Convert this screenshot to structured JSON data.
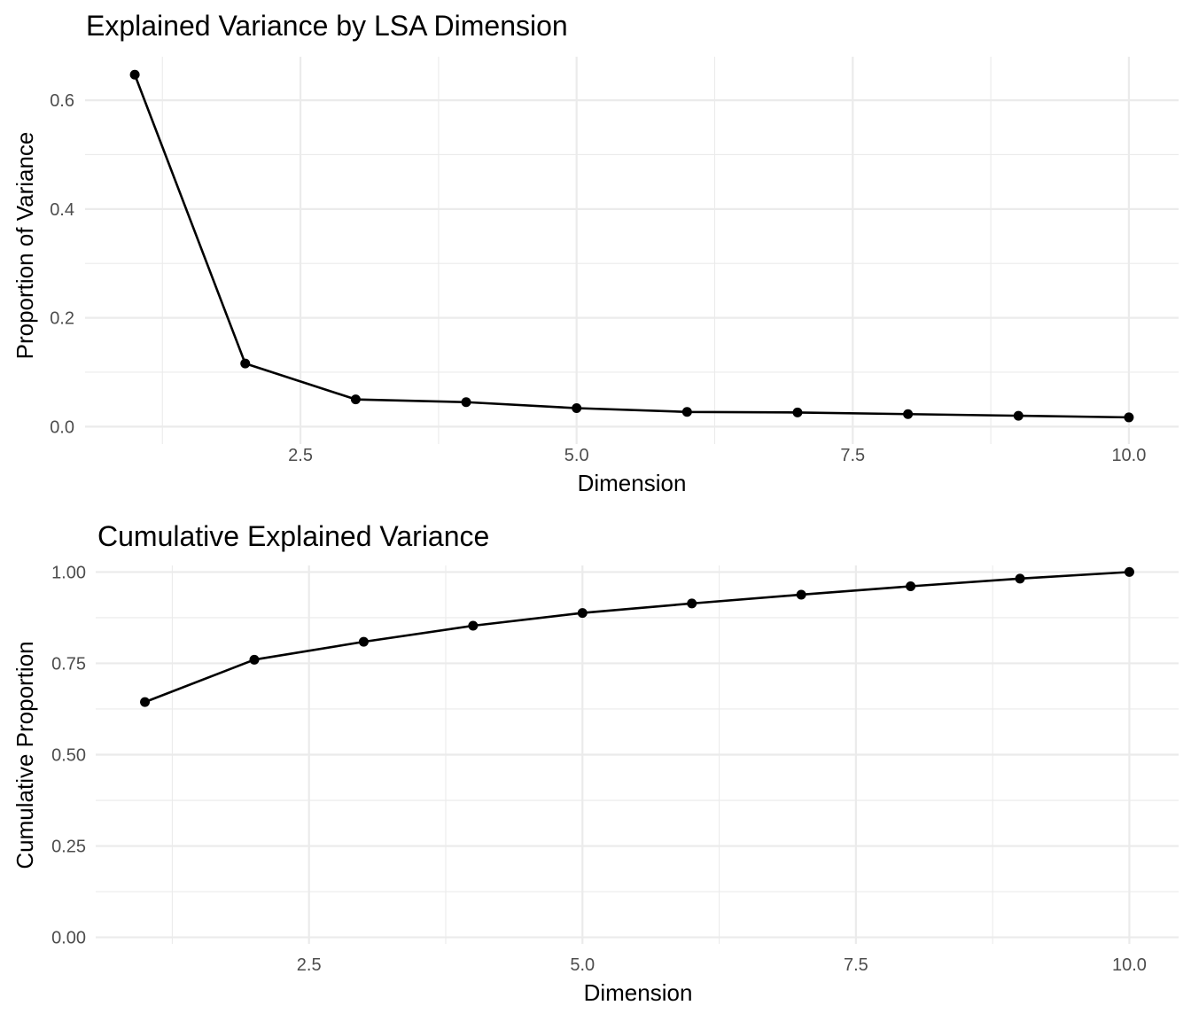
{
  "chart_data": [
    {
      "type": "line",
      "title": "Explained Variance by LSA Dimension",
      "xlabel": "Dimension",
      "ylabel": "Proportion of Variance",
      "x": [
        1,
        2,
        3,
        4,
        5,
        6,
        7,
        8,
        9,
        10
      ],
      "series": [
        {
          "name": "Proportion of Variance",
          "values": [
            0.647,
            0.116,
            0.05,
            0.045,
            0.034,
            0.027,
            0.026,
            0.023,
            0.02,
            0.017
          ]
        }
      ],
      "xlim": [
        0.55,
        10.45
      ],
      "ylim": [
        -0.032,
        0.68
      ],
      "x_ticks": [
        2.5,
        5.0,
        7.5,
        10.0
      ],
      "x_tick_labels": [
        "2.5",
        "5.0",
        "7.5",
        "10.0"
      ],
      "x_minor": [
        1.25,
        3.75,
        6.25,
        8.75
      ],
      "y_ticks": [
        0.0,
        0.2,
        0.4,
        0.6
      ],
      "y_tick_labels": [
        "0.0",
        "0.2",
        "0.4",
        "0.6"
      ],
      "y_minor": [
        0.1,
        0.3,
        0.5
      ],
      "grid": true,
      "legend": "none"
    },
    {
      "type": "line",
      "title": "Cumulative Explained Variance",
      "xlabel": "Dimension",
      "ylabel": "Cumulative Proportion",
      "x": [
        1,
        2,
        3,
        4,
        5,
        6,
        7,
        8,
        9,
        10
      ],
      "series": [
        {
          "name": "Cumulative Proportion",
          "values": [
            0.644,
            0.76,
            0.809,
            0.853,
            0.888,
            0.914,
            0.938,
            0.961,
            0.982,
            1.0
          ]
        }
      ],
      "xlim": [
        0.55,
        10.45
      ],
      "ylim": [
        -0.018,
        1.018
      ],
      "x_ticks": [
        2.5,
        5.0,
        7.5,
        10.0
      ],
      "x_tick_labels": [
        "2.5",
        "5.0",
        "7.5",
        "10.0"
      ],
      "x_minor": [
        1.25,
        3.75,
        6.25,
        8.75
      ],
      "y_ticks": [
        0.0,
        0.25,
        0.5,
        0.75,
        1.0
      ],
      "y_tick_labels": [
        "0.00",
        "0.25",
        "0.50",
        "0.75",
        "1.00"
      ],
      "y_minor": [
        0.125,
        0.375,
        0.625,
        0.875
      ],
      "grid": true,
      "legend": "none"
    }
  ]
}
